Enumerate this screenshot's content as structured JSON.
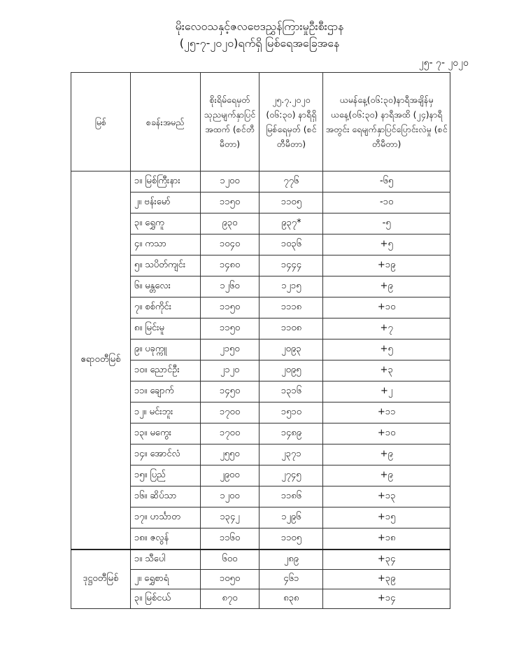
{
  "title_line1": "မိုးလေဝသနှင့်ဇလဗေဒညွှန်ကြားမှုဦးစီးဌာန",
  "title_line2": "(၂၅-၇-၂၀၂၀)ရက်ရှိ မြစ်ရေအခြေအနေ",
  "date": "၂၅- ၇- ၂၀၂၀",
  "headers": {
    "river": "မြစ်",
    "station": "စခန်းအမည်",
    "danger_level": "စိုးရိမ်ရေမှတ် သုညမျက်နှာပြင် အထက် (စင်တီမီတာ)",
    "current_level": "၂၅.၇.၂၀၂၀ (၀၆:၃၀) နာရီရှိ မြစ်ရေမှတ် (စင်တီမီတာ)",
    "change": "ယမန်နေ့(၀၆:၃၀)နာရီအချိန်မှ ယနေ့(၀၆:၃၀) နာရီအထိ (၂၄)နာရီအတွင်း ရေမျက်နှာပြင်ပြောင်းလဲမှု (စင်တီမီတာ)"
  },
  "sections": [
    {
      "river": "ဧရာဝတီမြစ်",
      "rows": [
        {
          "station": "၁။ မြစ်ကြီးနား",
          "danger": "၁၂၀၀",
          "level": "၇၇၆",
          "change": "-၆၅"
        },
        {
          "station": "၂။ ဗန်းမော်",
          "danger": "၁၁၅၀",
          "level": "၁၁၀၅",
          "change": "-၁၀"
        },
        {
          "station": "၃။ ရွှေကူ",
          "danger": "၉၃၀",
          "level": "၉၃၇*",
          "change": "-၅"
        },
        {
          "station": "၄။ ကသာ",
          "danger": "၁၀၄၀",
          "level": "၁၀၃၆",
          "change": "+၅"
        },
        {
          "station": "၅။ သပိတ်ကျင်း",
          "danger": "၁၄၈၀",
          "level": "၁၄၄၄",
          "change": "+၁၉"
        },
        {
          "station": "၆။ မန္တလေး",
          "danger": "၁၂၆၀",
          "level": "၁၂၁၅",
          "change": "+၉"
        },
        {
          "station": "၇။ စစ်ကိုင်း",
          "danger": "၁၁၅၀",
          "level": "၁၁၁၈",
          "change": "+၁၀"
        },
        {
          "station": "၈။ မြင်းမူ",
          "danger": "၁၁၅၀",
          "level": "၁၁၀၈",
          "change": "+၇"
        },
        {
          "station": "၉။ ပခုက္ကူ",
          "danger": "၂၁၅၀",
          "level": "၂၀၉၃",
          "change": "+၅"
        },
        {
          "station": "၁၀။ ညောင်ဦး",
          "danger": "၂၁၂၀",
          "level": "၂၀၉၅",
          "change": "+၃"
        },
        {
          "station": "၁၁။ ချောက်",
          "danger": "၁၄၅၀",
          "level": "၁၃၁၆",
          "change": "+၂"
        },
        {
          "station": "၁၂။ မင်းဘူး",
          "danger": "၁၇၀၀",
          "level": "၁၅၁၀",
          "change": "+၁၁"
        },
        {
          "station": "၁၃။ မကွေး",
          "danger": "၁၇၀၀",
          "level": "၁၄၈၉",
          "change": "+၁၀"
        },
        {
          "station": "၁၄။ အောင်လံ",
          "danger": "၂၅၅၀",
          "level": "၂၃၇၁",
          "change": "+၉"
        },
        {
          "station": "၁၅။ ပြည်",
          "danger": "၂၉၀၀",
          "level": "၂၇၄၅",
          "change": "+၉"
        },
        {
          "station": "၁၆။ ဆိပ်သာ",
          "danger": "၁၂၀၀",
          "level": "၁၁၈၆",
          "change": "+၁၃"
        },
        {
          "station": "၁၇။ ဟင်္သာတ",
          "danger": "၁၃၄၂",
          "level": "၁၂၉၆",
          "change": "+၁၅"
        },
        {
          "station": "၁၈။ ဇလွန်",
          "danger": "၁၁၆၀",
          "level": "၁၁၀၅",
          "change": "+၁၈"
        }
      ]
    },
    {
      "river": "ဒုဋ္ဌဝတီမြစ်",
      "rows": [
        {
          "station": "၁။ သီပေါ",
          "danger": "၆၀၀",
          "level": "၂၈၉",
          "change": "+၃၄"
        },
        {
          "station": "၂။ ရွှေစာရံ",
          "danger": "၁၀၅၀",
          "level": "၄၆၁",
          "change": "+၃၉"
        },
        {
          "station": "၃။ မြစ်ငယ်",
          "danger": "၈၇၀",
          "level": "၈၃၈",
          "change": "+၁၄"
        }
      ]
    }
  ]
}
